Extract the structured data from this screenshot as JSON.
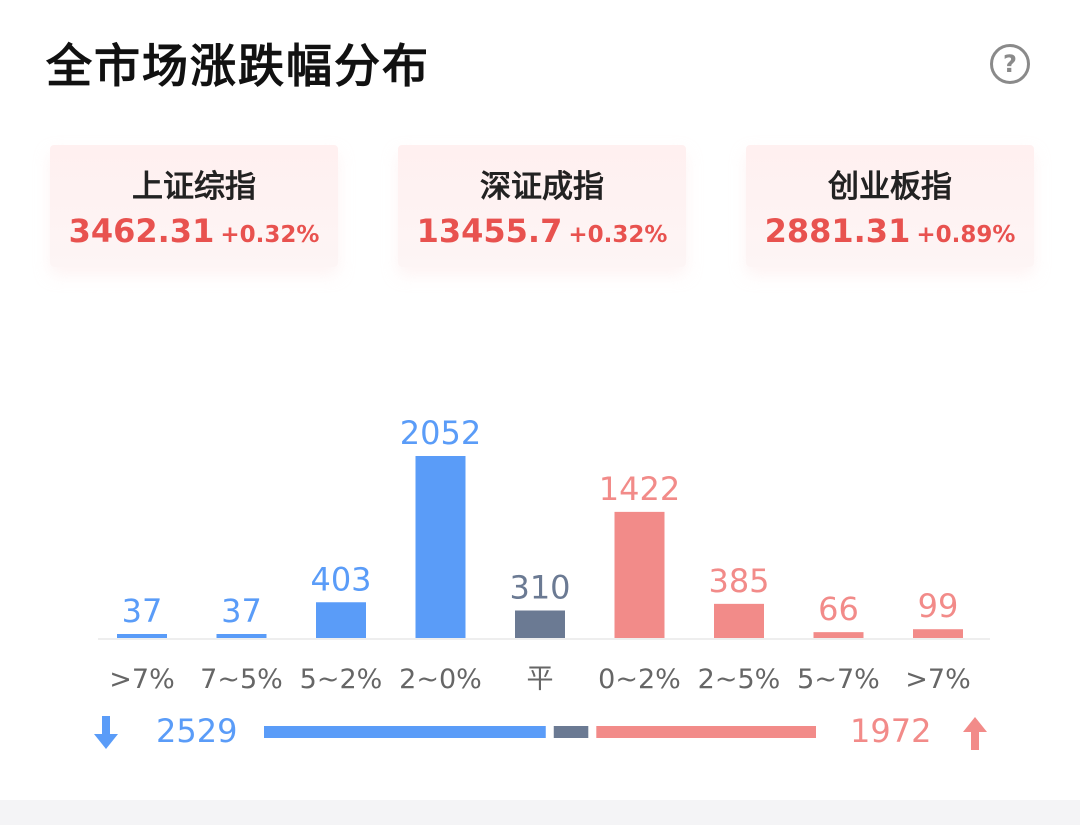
{
  "header": {
    "title": "全市场涨跌幅分布",
    "help_icon": "?"
  },
  "indices": [
    {
      "name": "上证综指",
      "value": "3462.31",
      "change": "+0.32%"
    },
    {
      "name": "深证成指",
      "value": "13455.7",
      "change": "+0.32%"
    },
    {
      "name": "创业板指",
      "value": "2881.31",
      "change": "+0.89%"
    }
  ],
  "colors": {
    "down": "#5a9cf8",
    "flat": "#6b7a93",
    "up": "#f28b89",
    "index_text": "#e8524f",
    "axis_label": "#666666"
  },
  "chart_data": {
    "type": "bar",
    "categories": [
      ">7%",
      "7~5%",
      "5~2%",
      "2~0%",
      "平",
      "0~2%",
      "2~5%",
      "5~7%",
      ">7%"
    ],
    "values": [
      37,
      37,
      403,
      2052,
      310,
      1422,
      385,
      66,
      99
    ],
    "groups": [
      "down",
      "down",
      "down",
      "down",
      "flat",
      "up",
      "up",
      "up",
      "up"
    ],
    "ylim": [
      0,
      2052
    ],
    "title": "",
    "xlabel": "",
    "ylabel": ""
  },
  "summary": {
    "down_total": "2529",
    "up_total": "1972",
    "down_icon": "arrow-down-icon",
    "up_icon": "arrow-up-icon"
  }
}
